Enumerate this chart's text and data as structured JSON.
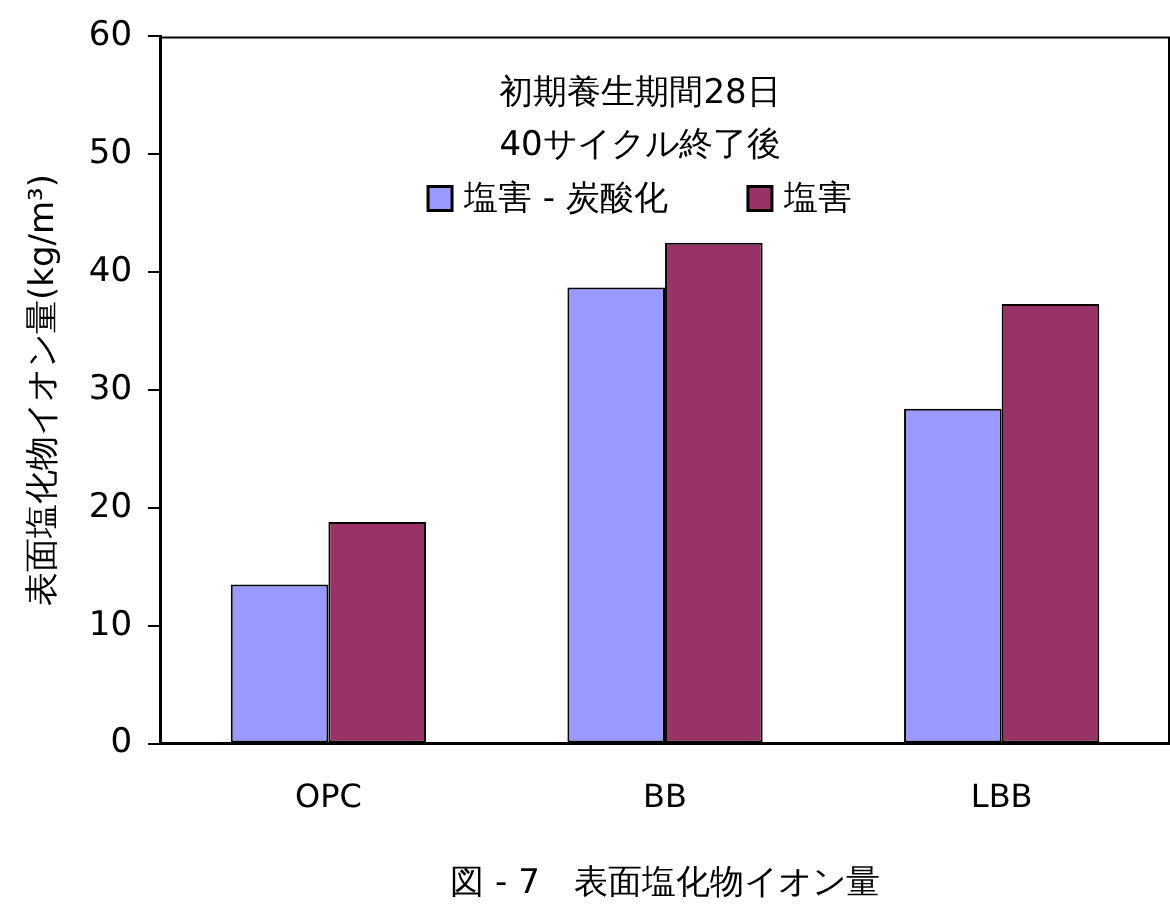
{
  "chart_data": {
    "type": "bar",
    "ylabel": "表面塩化物イオン量(kg/m³)",
    "categories": [
      "OPC",
      "BB",
      "LBB"
    ],
    "series": [
      {
        "name": "塩害 - 炭酸化",
        "color": "#9999ff",
        "values": [
          13.5,
          38.7,
          28.4
        ]
      },
      {
        "name": "塩害",
        "color": "#993366",
        "values": [
          18.8,
          42.5,
          37.3
        ]
      }
    ],
    "ylim": [
      0,
      60
    ],
    "yticks": [
      0,
      10,
      20,
      30,
      40,
      50,
      60
    ],
    "legend": "top",
    "annotations": [
      "初期養生期間28日",
      "40サイクル終了後",
      "図 - 7　表面塩化物イオン量"
    ]
  }
}
